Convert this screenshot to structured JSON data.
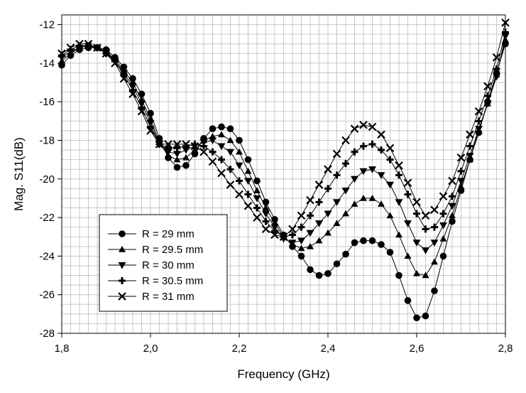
{
  "chart_data": {
    "type": "line",
    "title": "",
    "xlabel": "Frequency (GHz)",
    "ylabel": "Mag. S11(dB)",
    "xlim": [
      1.8,
      2.8
    ],
    "ylim": [
      -28,
      -11.5
    ],
    "xticks": [
      1.8,
      2.0,
      2.2,
      2.4,
      2.6,
      2.8
    ],
    "xtick_labels": [
      "1,8",
      "2,0",
      "2,2",
      "2,4",
      "2,6",
      "2,8"
    ],
    "yticks": [
      -28,
      -26,
      -24,
      -22,
      -20,
      -18,
      -16,
      -14,
      -12
    ],
    "ytick_labels": [
      "-28",
      "-26",
      "-24",
      "-22",
      "-20",
      "-18",
      "-16",
      "-14",
      "-12"
    ],
    "grid": true,
    "legend_position": "bottom-left",
    "x": [
      1.8,
      1.82,
      1.84,
      1.86,
      1.88,
      1.9,
      1.92,
      1.94,
      1.96,
      1.98,
      2.0,
      2.02,
      2.04,
      2.06,
      2.08,
      2.1,
      2.12,
      2.14,
      2.16,
      2.18,
      2.2,
      2.22,
      2.24,
      2.26,
      2.28,
      2.3,
      2.32,
      2.34,
      2.36,
      2.38,
      2.4,
      2.42,
      2.44,
      2.46,
      2.48,
      2.5,
      2.52,
      2.54,
      2.56,
      2.58,
      2.6,
      2.62,
      2.64,
      2.66,
      2.68,
      2.7,
      2.72,
      2.74,
      2.76,
      2.78,
      2.8
    ],
    "series": [
      {
        "name": "R = 29 mm",
        "marker": "circle",
        "values": [
          -14.1,
          -13.6,
          -13.3,
          -13.2,
          -13.2,
          -13.3,
          -13.7,
          -14.2,
          -14.8,
          -15.6,
          -16.6,
          -17.9,
          -18.9,
          -19.4,
          -19.3,
          -18.7,
          -17.9,
          -17.4,
          -17.3,
          -17.4,
          -18.0,
          -19.0,
          -20.1,
          -21.2,
          -22.1,
          -22.9,
          -23.5,
          -24.0,
          -24.7,
          -25.0,
          -24.9,
          -24.4,
          -23.9,
          -23.3,
          -23.2,
          -23.2,
          -23.4,
          -23.8,
          -25.0,
          -26.3,
          -27.2,
          -27.1,
          -25.8,
          -24.0,
          -22.2,
          -20.6,
          -19.0,
          -17.6,
          -16.0,
          -14.5,
          -13.0
        ]
      },
      {
        "name": "R = 29.5 mm",
        "marker": "triangle-up",
        "values": [
          -13.9,
          -13.5,
          -13.2,
          -13.1,
          -13.2,
          -13.4,
          -13.8,
          -14.4,
          -15.0,
          -15.9,
          -16.9,
          -18.1,
          -18.8,
          -19.0,
          -18.9,
          -18.5,
          -18.0,
          -17.8,
          -17.7,
          -18.0,
          -18.6,
          -19.6,
          -20.6,
          -21.5,
          -22.3,
          -23.0,
          -23.4,
          -23.6,
          -23.5,
          -23.2,
          -22.8,
          -22.3,
          -21.8,
          -21.3,
          -21.0,
          -21.0,
          -21.3,
          -21.9,
          -22.9,
          -24.0,
          -24.9,
          -25.0,
          -24.3,
          -23.1,
          -21.9,
          -20.4,
          -19.0,
          -17.5,
          -16.1,
          -14.6,
          -12.8
        ]
      },
      {
        "name": "R = 30 mm",
        "marker": "triangle-down",
        "values": [
          -13.7,
          -13.4,
          -13.2,
          -13.1,
          -13.2,
          -13.4,
          -13.9,
          -14.5,
          -15.2,
          -16.1,
          -17.1,
          -18.2,
          -18.6,
          -18.7,
          -18.5,
          -18.3,
          -18.1,
          -18.0,
          -18.3,
          -18.6,
          -19.3,
          -20.1,
          -21.0,
          -21.8,
          -22.5,
          -23.1,
          -23.3,
          -23.2,
          -22.8,
          -22.3,
          -21.8,
          -21.2,
          -20.6,
          -20.0,
          -19.6,
          -19.5,
          -19.8,
          -20.3,
          -21.2,
          -22.3,
          -23.3,
          -23.7,
          -23.3,
          -22.4,
          -21.4,
          -20.1,
          -18.8,
          -17.4,
          -16.1,
          -14.7,
          -12.6
        ]
      },
      {
        "name": "R = 30.5 mm",
        "marker": "plus",
        "values": [
          -13.6,
          -13.3,
          -13.1,
          -13.1,
          -13.2,
          -13.5,
          -13.9,
          -14.6,
          -15.4,
          -16.3,
          -17.3,
          -18.2,
          -18.4,
          -18.4,
          -18.3,
          -18.2,
          -18.3,
          -18.6,
          -19.0,
          -19.5,
          -20.1,
          -20.8,
          -21.5,
          -22.2,
          -22.7,
          -23.0,
          -22.9,
          -22.5,
          -21.9,
          -21.2,
          -20.5,
          -19.8,
          -19.2,
          -18.6,
          -18.3,
          -18.2,
          -18.5,
          -19.0,
          -19.8,
          -20.8,
          -21.8,
          -22.6,
          -22.5,
          -21.8,
          -20.9,
          -19.6,
          -18.3,
          -17.0,
          -15.7,
          -14.3,
          -12.4
        ]
      },
      {
        "name": "R = 31 mm",
        "marker": "x",
        "values": [
          -13.5,
          -13.2,
          -13.0,
          -13.0,
          -13.2,
          -13.5,
          -14.0,
          -14.8,
          -15.6,
          -16.5,
          -17.5,
          -18.2,
          -18.2,
          -18.2,
          -18.2,
          -18.3,
          -18.6,
          -19.1,
          -19.7,
          -20.3,
          -20.8,
          -21.4,
          -22.0,
          -22.6,
          -22.9,
          -23.0,
          -22.6,
          -21.9,
          -21.1,
          -20.3,
          -19.5,
          -18.7,
          -18.0,
          -17.4,
          -17.2,
          -17.3,
          -17.7,
          -18.4,
          -19.3,
          -20.2,
          -21.2,
          -21.9,
          -21.6,
          -20.9,
          -20.1,
          -18.9,
          -17.7,
          -16.5,
          -15.2,
          -13.7,
          -11.9
        ]
      }
    ]
  }
}
